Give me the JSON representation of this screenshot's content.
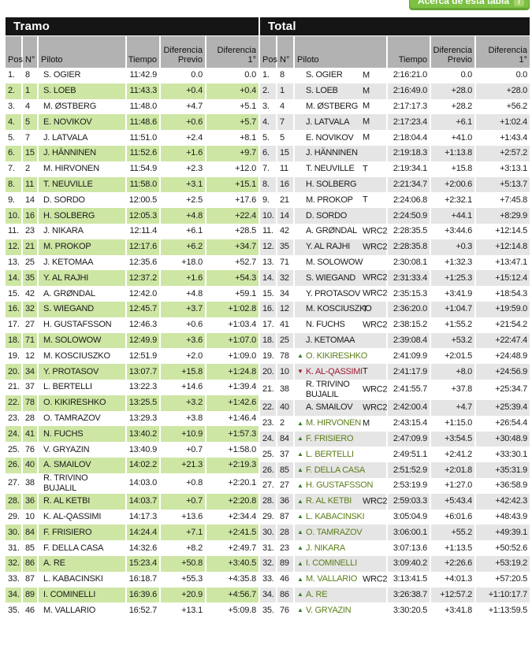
{
  "about_button": {
    "label": "Acerca de esta tabla",
    "icon": "info-icon"
  },
  "accent_colors": {
    "button_green": "#7cc142",
    "stripe_green": "#cee6a4",
    "stripe_gray": "#e5e5e5",
    "header_gray": "#b2b2b2",
    "header_black": "#151515",
    "gain_green": "#5b7e17",
    "loss_red": "#9c1b30"
  },
  "tramo": {
    "title": "Tramo",
    "headers": {
      "pos": "Pos",
      "no": "N°",
      "name": "Piloto",
      "time": "Tiempo",
      "prev": "Diferencia Previo",
      "first": "Diferencia 1°"
    },
    "rows": [
      {
        "pos": "1.",
        "no": "8",
        "name": "S. OGIER",
        "time": "11:42.9",
        "prev": "0.0",
        "first": "0.0"
      },
      {
        "pos": "2.",
        "no": "1",
        "name": "S. LOEB",
        "time": "11:43.3",
        "prev": "+0.4",
        "first": "+0.4"
      },
      {
        "pos": "3.",
        "no": "4",
        "name": "M. ØSTBERG",
        "time": "11:48.0",
        "prev": "+4.7",
        "first": "+5.1"
      },
      {
        "pos": "4.",
        "no": "5",
        "name": "E. NOVIKOV",
        "time": "11:48.6",
        "prev": "+0.6",
        "first": "+5.7"
      },
      {
        "pos": "5.",
        "no": "7",
        "name": "J. LATVALA",
        "time": "11:51.0",
        "prev": "+2.4",
        "first": "+8.1"
      },
      {
        "pos": "6.",
        "no": "15",
        "name": "J. HÄNNINEN",
        "time": "11:52.6",
        "prev": "+1.6",
        "first": "+9.7"
      },
      {
        "pos": "7.",
        "no": "2",
        "name": "M. HIRVONEN",
        "time": "11:54.9",
        "prev": "+2.3",
        "first": "+12.0"
      },
      {
        "pos": "8.",
        "no": "11",
        "name": "T. NEUVILLE",
        "time": "11:58.0",
        "prev": "+3.1",
        "first": "+15.1"
      },
      {
        "pos": "9.",
        "no": "14",
        "name": "D. SORDO",
        "time": "12:00.5",
        "prev": "+2.5",
        "first": "+17.6"
      },
      {
        "pos": "10.",
        "no": "16",
        "name": "H. SOLBERG",
        "time": "12:05.3",
        "prev": "+4.8",
        "first": "+22.4"
      },
      {
        "pos": "11.",
        "no": "23",
        "name": "J. NIKARA",
        "time": "12:11.4",
        "prev": "+6.1",
        "first": "+28.5"
      },
      {
        "pos": "12.",
        "no": "21",
        "name": "M. PROKOP",
        "time": "12:17.6",
        "prev": "+6.2",
        "first": "+34.7"
      },
      {
        "pos": "13.",
        "no": "25",
        "name": "J. KETOMAA",
        "time": "12:35.6",
        "prev": "+18.0",
        "first": "+52.7"
      },
      {
        "pos": "14.",
        "no": "35",
        "name": "Y. AL RAJHI",
        "time": "12:37.2",
        "prev": "+1.6",
        "first": "+54.3"
      },
      {
        "pos": "15.",
        "no": "42",
        "name": "A. GRØNDAL",
        "time": "12:42.0",
        "prev": "+4.8",
        "first": "+59.1"
      },
      {
        "pos": "16.",
        "no": "32",
        "name": "S. WIEGAND",
        "time": "12:45.7",
        "prev": "+3.7",
        "first": "+1:02.8"
      },
      {
        "pos": "17.",
        "no": "27",
        "name": "H. GUSTAFSSON",
        "time": "12:46.3",
        "prev": "+0.6",
        "first": "+1:03.4"
      },
      {
        "pos": "18.",
        "no": "71",
        "name": "M. SOLOWOW",
        "time": "12:49.9",
        "prev": "+3.6",
        "first": "+1:07.0"
      },
      {
        "pos": "19.",
        "no": "12",
        "name": "M. KOSCIUSZKO",
        "time": "12:51.9",
        "prev": "+2.0",
        "first": "+1:09.0"
      },
      {
        "pos": "20.",
        "no": "34",
        "name": "Y. PROTASOV",
        "time": "13:07.7",
        "prev": "+15.8",
        "first": "+1:24.8"
      },
      {
        "pos": "21.",
        "no": "37",
        "name": "L. BERTELLI",
        "time": "13:22.3",
        "prev": "+14.6",
        "first": "+1:39.4"
      },
      {
        "pos": "22.",
        "no": "78",
        "name": "O. KIKIRESHKO",
        "time": "13:25.5",
        "prev": "+3.2",
        "first": "+1:42.6"
      },
      {
        "pos": "23.",
        "no": "28",
        "name": "O. TAMRAZOV",
        "time": "13:29.3",
        "prev": "+3.8",
        "first": "+1:46.4"
      },
      {
        "pos": "24.",
        "no": "41",
        "name": "N. FUCHS",
        "time": "13:40.2",
        "prev": "+10.9",
        "first": "+1:57.3"
      },
      {
        "pos": "25.",
        "no": "76",
        "name": "V. GRYAZIN",
        "time": "13:40.9",
        "prev": "+0.7",
        "first": "+1:58.0"
      },
      {
        "pos": "26.",
        "no": "40",
        "name": "A. SMAILOV",
        "time": "14:02.2",
        "prev": "+21.3",
        "first": "+2:19.3"
      },
      {
        "pos": "27.",
        "no": "38",
        "name": "R. TRIVINO BUJALIL",
        "time": "14:03.0",
        "prev": "+0.8",
        "first": "+2:20.1"
      },
      {
        "pos": "28.",
        "no": "36",
        "name": "R. AL KETBI",
        "time": "14:03.7",
        "prev": "+0.7",
        "first": "+2:20.8"
      },
      {
        "pos": "29.",
        "no": "10",
        "name": "K. AL-QASSIMI",
        "time": "14:17.3",
        "prev": "+13.6",
        "first": "+2:34.4"
      },
      {
        "pos": "30.",
        "no": "84",
        "name": "F. FRISIERO",
        "time": "14:24.4",
        "prev": "+7.1",
        "first": "+2:41.5"
      },
      {
        "pos": "31.",
        "no": "85",
        "name": "F. DELLA CASA",
        "time": "14:32.6",
        "prev": "+8.2",
        "first": "+2:49.7"
      },
      {
        "pos": "32.",
        "no": "86",
        "name": "A. RE",
        "time": "15:23.4",
        "prev": "+50.8",
        "first": "+3:40.5"
      },
      {
        "pos": "33.",
        "no": "87",
        "name": "L. KABACINSKI",
        "time": "16:18.7",
        "prev": "+55.3",
        "first": "+4:35.8"
      },
      {
        "pos": "34.",
        "no": "89",
        "name": "I. COMINELLI",
        "time": "16:39.6",
        "prev": "+20.9",
        "first": "+4:56.7"
      },
      {
        "pos": "35.",
        "no": "46",
        "name": "M. VALLARIO",
        "time": "16:52.7",
        "prev": "+13.1",
        "first": "+5:09.8"
      }
    ]
  },
  "total": {
    "title": "Total",
    "headers": {
      "pos": "Pos",
      "no": "N°",
      "name": "Piloto",
      "time": "Tiempo",
      "prev": "Diferencia Previo",
      "first": "Diferencia 1°"
    },
    "rows": [
      {
        "pos": "1.",
        "no": "8",
        "arrow": "",
        "name": "S. OGIER",
        "cls": "M",
        "time": "2:16:21.0",
        "prev": "0.0",
        "first": "0.0"
      },
      {
        "pos": "2.",
        "no": "1",
        "arrow": "",
        "name": "S. LOEB",
        "cls": "M",
        "time": "2:16:49.0",
        "prev": "+28.0",
        "first": "+28.0"
      },
      {
        "pos": "3.",
        "no": "4",
        "arrow": "",
        "name": "M. ØSTBERG",
        "cls": "M",
        "time": "2:17:17.3",
        "prev": "+28.2",
        "first": "+56.2"
      },
      {
        "pos": "4.",
        "no": "7",
        "arrow": "",
        "name": "J. LATVALA",
        "cls": "M",
        "time": "2:17:23.4",
        "prev": "+6.1",
        "first": "+1:02.4"
      },
      {
        "pos": "5.",
        "no": "5",
        "arrow": "",
        "name": "E. NOVIKOV",
        "cls": "M",
        "time": "2:18:04.4",
        "prev": "+41.0",
        "first": "+1:43.4"
      },
      {
        "pos": "6.",
        "no": "15",
        "arrow": "",
        "name": "J. HÄNNINEN",
        "cls": "",
        "time": "2:19:18.3",
        "prev": "+1:13.8",
        "first": "+2:57.2"
      },
      {
        "pos": "7.",
        "no": "11",
        "arrow": "",
        "name": "T. NEUVILLE",
        "cls": "T",
        "time": "2:19:34.1",
        "prev": "+15.8",
        "first": "+3:13.1"
      },
      {
        "pos": "8.",
        "no": "16",
        "arrow": "",
        "name": "H. SOLBERG",
        "cls": "",
        "time": "2:21:34.7",
        "prev": "+2:00.6",
        "first": "+5:13.7"
      },
      {
        "pos": "9.",
        "no": "21",
        "arrow": "",
        "name": "M. PROKOP",
        "cls": "T",
        "time": "2:24:06.8",
        "prev": "+2:32.1",
        "first": "+7:45.8"
      },
      {
        "pos": "10.",
        "no": "14",
        "arrow": "",
        "name": "D. SORDO",
        "cls": "",
        "time": "2:24:50.9",
        "prev": "+44.1",
        "first": "+8:29.9"
      },
      {
        "pos": "11.",
        "no": "42",
        "arrow": "",
        "name": "A. GRØNDAL",
        "cls": "WRC2",
        "time": "2:28:35.5",
        "prev": "+3:44.6",
        "first": "+12:14.5"
      },
      {
        "pos": "12.",
        "no": "35",
        "arrow": "",
        "name": "Y. AL RAJHI",
        "cls": "WRC2",
        "time": "2:28:35.8",
        "prev": "+0.3",
        "first": "+12:14.8"
      },
      {
        "pos": "13.",
        "no": "71",
        "arrow": "",
        "name": "M. SOLOWOW",
        "cls": "",
        "time": "2:30:08.1",
        "prev": "+1:32.3",
        "first": "+13:47.1"
      },
      {
        "pos": "14.",
        "no": "32",
        "arrow": "",
        "name": "S. WIEGAND",
        "cls": "WRC2",
        "time": "2:31:33.4",
        "prev": "+1:25.3",
        "first": "+15:12.4"
      },
      {
        "pos": "15.",
        "no": "34",
        "arrow": "",
        "name": "Y. PROTASOV",
        "cls": "WRC2",
        "time": "2:35:15.3",
        "prev": "+3:41.9",
        "first": "+18:54.3"
      },
      {
        "pos": "16.",
        "no": "12",
        "arrow": "",
        "name": "M. KOSCIUSZKO",
        "cls": "T",
        "time": "2:36:20.0",
        "prev": "+1:04.7",
        "first": "+19:59.0"
      },
      {
        "pos": "17.",
        "no": "41",
        "arrow": "",
        "name": "N. FUCHS",
        "cls": "WRC2",
        "time": "2:38:15.2",
        "prev": "+1:55.2",
        "first": "+21:54.2"
      },
      {
        "pos": "18.",
        "no": "25",
        "arrow": "",
        "name": "J. KETOMAA",
        "cls": "",
        "time": "2:39:08.4",
        "prev": "+53.2",
        "first": "+22:47.4"
      },
      {
        "pos": "19.",
        "no": "78",
        "arrow": "up",
        "name": "O. KIKIRESHKO",
        "cls": "",
        "time": "2:41:09.9",
        "prev": "+2:01.5",
        "first": "+24:48.9"
      },
      {
        "pos": "20.",
        "no": "10",
        "arrow": "down",
        "name": "K. AL-QASSIMI",
        "cls": "T",
        "time": "2:41:17.9",
        "prev": "+8.0",
        "first": "+24:56.9"
      },
      {
        "pos": "21.",
        "no": "38",
        "arrow": "",
        "name": "R. TRIVINO BUJALIL",
        "cls": "WRC2",
        "time": "2:41:55.7",
        "prev": "+37.8",
        "first": "+25:34.7"
      },
      {
        "pos": "22.",
        "no": "40",
        "arrow": "",
        "name": "A. SMAILOV",
        "cls": "WRC2",
        "time": "2:42:00.4",
        "prev": "+4.7",
        "first": "+25:39.4"
      },
      {
        "pos": "23.",
        "no": "2",
        "arrow": "up",
        "name": "M. HIRVONEN",
        "cls": "M",
        "time": "2:43:15.4",
        "prev": "+1:15.0",
        "first": "+26:54.4"
      },
      {
        "pos": "24.",
        "no": "84",
        "arrow": "up",
        "name": "F. FRISIERO",
        "cls": "",
        "time": "2:47:09.9",
        "prev": "+3:54.5",
        "first": "+30:48.9"
      },
      {
        "pos": "25.",
        "no": "37",
        "arrow": "up",
        "name": "L. BERTELLI",
        "cls": "",
        "time": "2:49:51.1",
        "prev": "+2:41.2",
        "first": "+33:30.1"
      },
      {
        "pos": "26.",
        "no": "85",
        "arrow": "up",
        "name": "F. DELLA CASA",
        "cls": "",
        "time": "2:51:52.9",
        "prev": "+2:01.8",
        "first": "+35:31.9"
      },
      {
        "pos": "27.",
        "no": "27",
        "arrow": "up",
        "name": "H. GUSTAFSSON",
        "cls": "",
        "time": "2:53:19.9",
        "prev": "+1:27.0",
        "first": "+36:58.9"
      },
      {
        "pos": "28.",
        "no": "36",
        "arrow": "up",
        "name": "R. AL KETBI",
        "cls": "WRC2",
        "time": "2:59:03.3",
        "prev": "+5:43.4",
        "first": "+42:42.3"
      },
      {
        "pos": "29.",
        "no": "87",
        "arrow": "up",
        "name": "L. KABACINSKI",
        "cls": "",
        "time": "3:05:04.9",
        "prev": "+6:01.6",
        "first": "+48:43.9"
      },
      {
        "pos": "30.",
        "no": "28",
        "arrow": "up",
        "name": "O. TAMRAZOV",
        "cls": "",
        "time": "3:06:00.1",
        "prev": "+55.2",
        "first": "+49:39.1"
      },
      {
        "pos": "31.",
        "no": "23",
        "arrow": "up",
        "name": "J. NIKARA",
        "cls": "",
        "time": "3:07:13.6",
        "prev": "+1:13.5",
        "first": "+50:52.6"
      },
      {
        "pos": "32.",
        "no": "89",
        "arrow": "up",
        "name": "I. COMINELLI",
        "cls": "",
        "time": "3:09:40.2",
        "prev": "+2:26.6",
        "first": "+53:19.2"
      },
      {
        "pos": "33.",
        "no": "46",
        "arrow": "up",
        "name": "M. VALLARIO",
        "cls": "WRC2",
        "time": "3:13:41.5",
        "prev": "+4:01.3",
        "first": "+57:20.5"
      },
      {
        "pos": "34.",
        "no": "86",
        "arrow": "up",
        "name": "A. RE",
        "cls": "",
        "time": "3:26:38.7",
        "prev": "+12:57.2",
        "first": "+1:10:17.7"
      },
      {
        "pos": "35.",
        "no": "76",
        "arrow": "up",
        "name": "V. GRYAZIN",
        "cls": "",
        "time": "3:30:20.5",
        "prev": "+3:41.8",
        "first": "+1:13:59.5"
      }
    ]
  }
}
